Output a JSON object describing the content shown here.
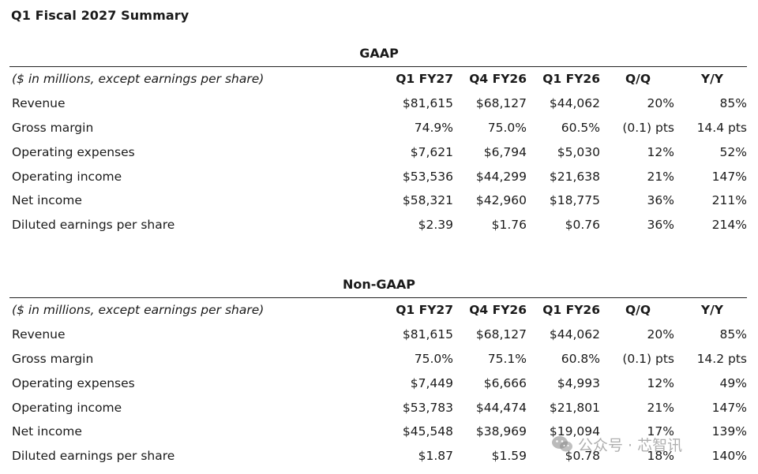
{
  "page_title": "Q1 Fiscal 2027 Summary",
  "sections": [
    {
      "title": "GAAP",
      "header": {
        "label": "($ in millions, except earnings per share)",
        "columns": [
          "Q1 FY27",
          "Q4 FY26",
          "Q1 FY26",
          "Q/Q",
          "Y/Y"
        ]
      },
      "rows": [
        {
          "label": "Revenue",
          "values": [
            "$81,615",
            "$68,127",
            "$44,062",
            "20%",
            "85%"
          ]
        },
        {
          "label": "Gross margin",
          "values": [
            "74.9%",
            "75.0%",
            "60.5%",
            "(0.1) pts",
            "14.4 pts"
          ]
        },
        {
          "label": "Operating expenses",
          "values": [
            "$7,621",
            "$6,794",
            "$5,030",
            "12%",
            "52%"
          ]
        },
        {
          "label": "Operating income",
          "values": [
            "$53,536",
            "$44,299",
            "$21,638",
            "21%",
            "147%"
          ]
        },
        {
          "label": "Net income",
          "values": [
            "$58,321",
            "$42,960",
            "$18,775",
            "36%",
            "211%"
          ]
        },
        {
          "label": "Diluted earnings per share",
          "values": [
            "$2.39",
            "$1.76",
            "$0.76",
            "36%",
            "214%"
          ]
        }
      ]
    },
    {
      "title": "Non-GAAP",
      "header": {
        "label": "($ in millions, except earnings per share)",
        "columns": [
          "Q1 FY27",
          "Q4 FY26",
          "Q1 FY26",
          "Q/Q",
          "Y/Y"
        ]
      },
      "rows": [
        {
          "label": "Revenue",
          "values": [
            "$81,615",
            "$68,127",
            "$44,062",
            "20%",
            "85%"
          ]
        },
        {
          "label": "Gross margin",
          "values": [
            "75.0%",
            "75.1%",
            "60.8%",
            "(0.1) pts",
            "14.2 pts"
          ]
        },
        {
          "label": "Operating expenses",
          "values": [
            "$7,449",
            "$6,666",
            "$4,993",
            "12%",
            "49%"
          ]
        },
        {
          "label": "Operating income",
          "values": [
            "$53,783",
            "$44,474",
            "$21,801",
            "21%",
            "147%"
          ]
        },
        {
          "label": "Net income",
          "values": [
            "$45,548",
            "$38,969",
            "$19,094",
            "17%",
            "139%"
          ]
        },
        {
          "label": "Diluted earnings per share",
          "values": [
            "$1.87",
            "$1.59",
            "$0.78",
            "18%",
            "140%"
          ]
        }
      ]
    }
  ],
  "watermark": {
    "icon": "wechat-logo-icon",
    "text": "公众号 · 芯智讯"
  }
}
